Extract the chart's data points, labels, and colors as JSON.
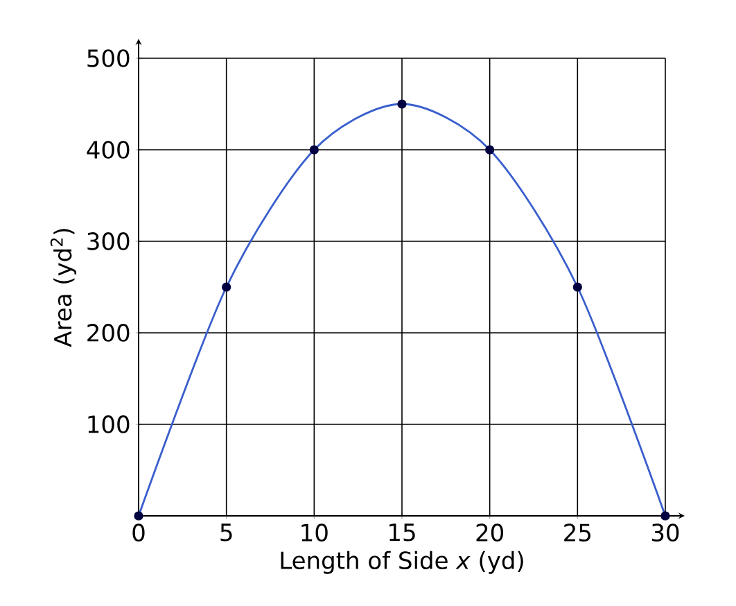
{
  "chart_data": {
    "type": "line",
    "xlabel": "Length of Side *x* (yd)",
    "ylabel": "Area (yd$^{2}$)",
    "x": [
      0,
      5,
      10,
      15,
      20,
      25,
      30
    ],
    "series": [
      {
        "color": "#3a5fcd",
        "values": [
          0,
          250,
          400,
          450,
          400,
          250,
          0
        ]
      }
    ],
    "xlim": [
      0,
      30
    ],
    "ylim": [
      0,
      500
    ],
    "xticks": [
      0,
      5,
      10,
      15,
      20,
      25,
      30
    ],
    "yticks": [
      {
        "value": 0,
        "label": null
      },
      100,
      200,
      300,
      400,
      500
    ],
    "grid": true,
    "marker": "circle",
    "line_style": "solid"
  }
}
